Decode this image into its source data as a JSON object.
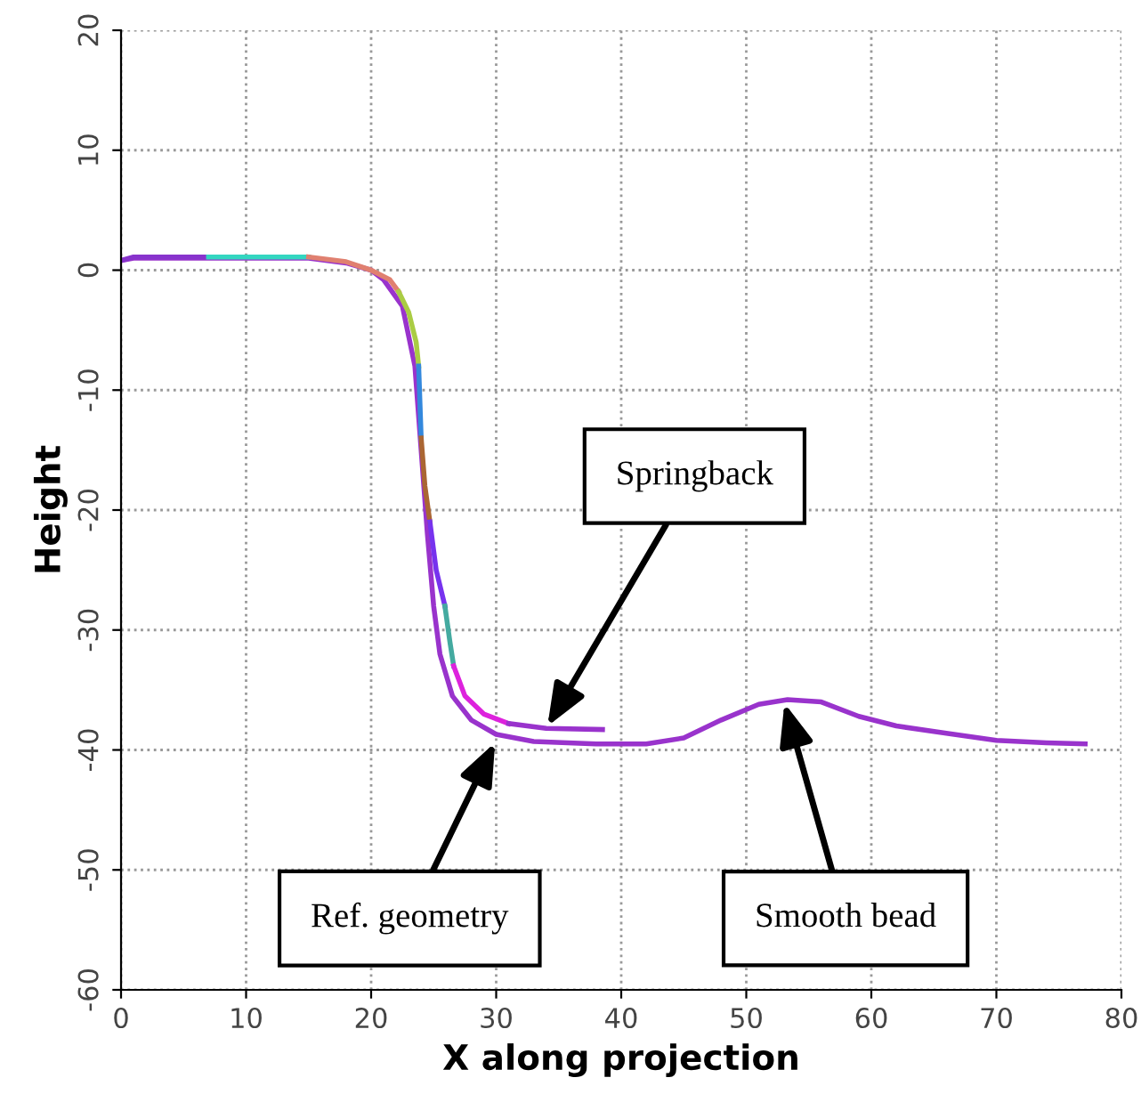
{
  "chart_data": {
    "type": "line",
    "xlabel": "X along projection",
    "ylabel": "Height",
    "xlim": [
      0,
      80
    ],
    "ylim": [
      -60,
      20
    ],
    "xticks": [
      0,
      10,
      20,
      30,
      40,
      50,
      60,
      70,
      80
    ],
    "yticks": [
      -60,
      -50,
      -40,
      -30,
      -20,
      -10,
      0,
      10,
      20
    ],
    "grid": true,
    "legend": false,
    "marker": "none",
    "line_style": "solid",
    "series": [
      {
        "color": "#9933cc",
        "x": [
          0,
          1,
          5,
          10,
          15,
          18,
          20,
          21,
          22.5,
          23.5,
          24,
          24.5,
          25,
          25.5,
          26.5,
          28,
          30,
          33,
          38,
          42,
          45,
          48,
          51,
          53.3,
          56,
          59,
          62,
          66,
          70,
          74,
          77.1
        ],
        "values": [
          0.8,
          1,
          1,
          1,
          1,
          0.6,
          0,
          -0.8,
          -3,
          -8,
          -15,
          -22,
          -28,
          -32,
          -35.5,
          -37.5,
          -38.7,
          -39.3,
          -39.5,
          -39.5,
          -39,
          -37.5,
          -36.2,
          -35.8,
          -36,
          -37.2,
          -38,
          -38.6,
          -39.2,
          -39.4,
          -39.5
        ]
      },
      {
        "color": "#8833cc",
        "x": [
          0,
          1,
          4,
          7
        ],
        "values": [
          0.8,
          1.1,
          1.1,
          1.1
        ]
      },
      {
        "color": "#33d6c0",
        "x": [
          7,
          11,
          15
        ],
        "values": [
          1.1,
          1.1,
          1.1
        ]
      },
      {
        "color": "#e08070",
        "x": [
          15,
          18,
          20,
          21.5,
          22.2
        ],
        "values": [
          1.1,
          0.7,
          0,
          -0.8,
          -1.8
        ]
      },
      {
        "color": "#aacc44",
        "x": [
          22.2,
          23,
          23.6,
          23.8
        ],
        "values": [
          -1.8,
          -3.5,
          -6,
          -8
        ]
      },
      {
        "color": "#3388dd",
        "x": [
          23.8,
          23.9,
          24
        ],
        "values": [
          -8,
          -11,
          -14
        ]
      },
      {
        "color": "#aa6633",
        "x": [
          24,
          24.3,
          24.7
        ],
        "values": [
          -14,
          -18,
          -21
        ]
      },
      {
        "color": "#7733ee",
        "x": [
          24.7,
          25.2,
          25.9
        ],
        "values": [
          -21,
          -25,
          -28
        ]
      },
      {
        "color": "#44aaa0",
        "x": [
          25.9,
          26.3,
          26.6
        ],
        "values": [
          -28,
          -31,
          -33
        ]
      },
      {
        "color": "#dd22dd",
        "x": [
          26.6,
          27.5,
          29,
          31
        ],
        "values": [
          -33,
          -35.5,
          -37,
          -37.8
        ]
      },
      {
        "color": "#9933cc",
        "x": [
          31,
          34,
          38.5
        ],
        "values": [
          -37.8,
          -38.2,
          -38.3
        ]
      }
    ],
    "annotations": [
      {
        "text": "Springback",
        "x": 34,
        "y": -38.2
      },
      {
        "text": "Ref. geometry",
        "x": 30,
        "y": -39.2
      },
      {
        "text": "Smooth bead",
        "x": 53,
        "y": -35.9
      }
    ]
  }
}
